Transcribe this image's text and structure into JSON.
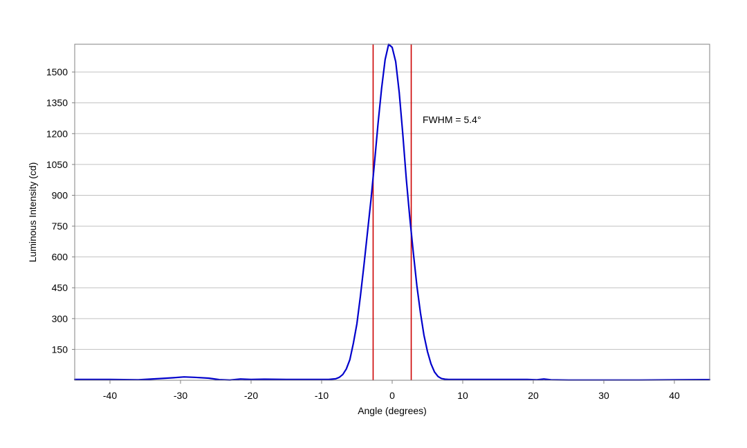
{
  "chart_data": {
    "type": "line",
    "title": "",
    "xlabel": "Angle (degrees)",
    "ylabel": "Luminous Intensity (cd)",
    "xlim": [
      -45,
      45
    ],
    "ylim": [
      0,
      1635
    ],
    "xticks": [
      -40,
      -30,
      -20,
      -10,
      0,
      10,
      20,
      30,
      40
    ],
    "yticks": [
      150,
      300,
      450,
      600,
      750,
      900,
      1050,
      1200,
      1350,
      1500
    ],
    "grid": "horizontal",
    "legend": "none",
    "colors": {
      "series": "#0000cc",
      "markers": "#cc0000",
      "grid": "#c0c0c0",
      "frame": "#808080"
    },
    "series": [
      {
        "x": [
          -45,
          -40,
          -36,
          -33,
          -31,
          -29.5,
          -28,
          -26,
          -24.5,
          -23,
          -21.5,
          -20,
          -18,
          -15,
          -12,
          -9,
          -8,
          -7.5,
          -7,
          -6.5,
          -6,
          -5.5,
          -5,
          -4.5,
          -4,
          -3.5,
          -3,
          -2.5,
          -2,
          -1.5,
          -1,
          -0.5,
          0,
          0.5,
          1,
          1.5,
          2,
          2.5,
          3,
          3.5,
          4,
          4.5,
          5,
          5.5,
          6,
          6.5,
          7,
          7.5,
          8,
          10,
          15,
          19,
          20.5,
          21.5,
          22.5,
          25,
          30,
          35,
          40,
          45
        ],
        "y": [
          4,
          4,
          2,
          8,
          12,
          16,
          14,
          10,
          3,
          1,
          6,
          4,
          5,
          4,
          4,
          4,
          7,
          14,
          28,
          55,
          100,
          180,
          275,
          410,
          560,
          720,
          880,
          1060,
          1250,
          1420,
          1560,
          1635,
          1620,
          1550,
          1400,
          1200,
          980,
          790,
          620,
          460,
          330,
          220,
          140,
          80,
          40,
          18,
          8,
          5,
          4,
          4,
          4,
          4,
          2,
          6,
          2,
          1,
          1,
          1,
          2,
          3
        ]
      }
    ],
    "markers": [
      -2.7,
      2.7
    ],
    "annotation": "FWHM = 5.4°"
  }
}
